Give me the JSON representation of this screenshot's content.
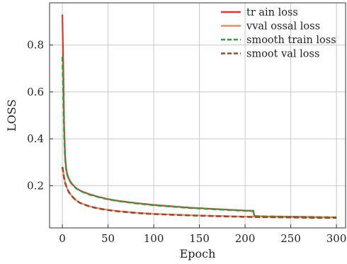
{
  "chart_data": {
    "type": "line",
    "title": "",
    "xlabel": "Epoch",
    "ylabel": "LOSS",
    "xlim": [
      -14,
      310
    ],
    "ylim": [
      0.02,
      0.98
    ],
    "xticks": [
      0,
      50,
      100,
      150,
      200,
      250,
      300
    ],
    "yticks": [
      0.2,
      0.4,
      0.6,
      0.8
    ],
    "grid": true,
    "legend_position": "top-right",
    "series": [
      {
        "name": "tr ain loss",
        "color": "#e8322a",
        "style": "solid",
        "x": [
          0,
          1,
          2,
          3,
          4,
          5,
          7,
          10,
          15,
          20,
          30,
          40,
          50,
          60,
          80,
          100,
          120,
          140,
          160,
          180,
          200,
          207,
          209,
          210,
          212,
          220,
          240,
          260,
          280,
          300
        ],
        "y": [
          0.93,
          0.7,
          0.45,
          0.33,
          0.28,
          0.255,
          0.23,
          0.21,
          0.19,
          0.178,
          0.163,
          0.152,
          0.143,
          0.136,
          0.126,
          0.118,
          0.112,
          0.106,
          0.102,
          0.098,
          0.094,
          0.093,
          0.093,
          0.072,
          0.07,
          0.069,
          0.068,
          0.067,
          0.066,
          0.065
        ]
      },
      {
        "name": "vval ossal loss",
        "color": "#f08a5a",
        "style": "solid",
        "x": [
          0,
          1,
          2,
          3,
          5,
          7,
          10,
          15,
          20,
          30,
          40,
          50,
          60,
          80,
          100,
          120,
          140,
          160,
          180,
          200,
          220,
          240,
          260,
          280,
          300
        ],
        "y": [
          0.28,
          0.26,
          0.235,
          0.215,
          0.19,
          0.174,
          0.158,
          0.138,
          0.126,
          0.112,
          0.103,
          0.097,
          0.092,
          0.085,
          0.08,
          0.077,
          0.074,
          0.072,
          0.07,
          0.068,
          0.067,
          0.066,
          0.065,
          0.064,
          0.064
        ]
      },
      {
        "name": "smooth train loss",
        "color": "#2e9e3e",
        "style": "dashed",
        "x": [
          0,
          1,
          2,
          3,
          4,
          5,
          7,
          10,
          15,
          20,
          30,
          40,
          50,
          60,
          80,
          100,
          120,
          140,
          160,
          180,
          200,
          207,
          209,
          210,
          212,
          220,
          240,
          260,
          280,
          300
        ],
        "y": [
          0.75,
          0.6,
          0.42,
          0.32,
          0.275,
          0.252,
          0.228,
          0.209,
          0.189,
          0.177,
          0.162,
          0.151,
          0.142,
          0.135,
          0.125,
          0.117,
          0.111,
          0.105,
          0.101,
          0.097,
          0.093,
          0.092,
          0.092,
          0.072,
          0.07,
          0.069,
          0.068,
          0.067,
          0.066,
          0.065
        ]
      },
      {
        "name": "smoot val loss",
        "color": "#9c4a2e",
        "style": "dashed",
        "x": [
          0,
          1,
          2,
          3,
          5,
          7,
          10,
          15,
          20,
          30,
          40,
          50,
          60,
          80,
          100,
          120,
          140,
          160,
          180,
          200,
          220,
          240,
          260,
          280,
          300
        ],
        "y": [
          0.28,
          0.255,
          0.232,
          0.213,
          0.189,
          0.173,
          0.157,
          0.137,
          0.125,
          0.111,
          0.102,
          0.096,
          0.091,
          0.084,
          0.079,
          0.076,
          0.073,
          0.071,
          0.069,
          0.067,
          0.066,
          0.065,
          0.064,
          0.063,
          0.063
        ]
      }
    ]
  }
}
